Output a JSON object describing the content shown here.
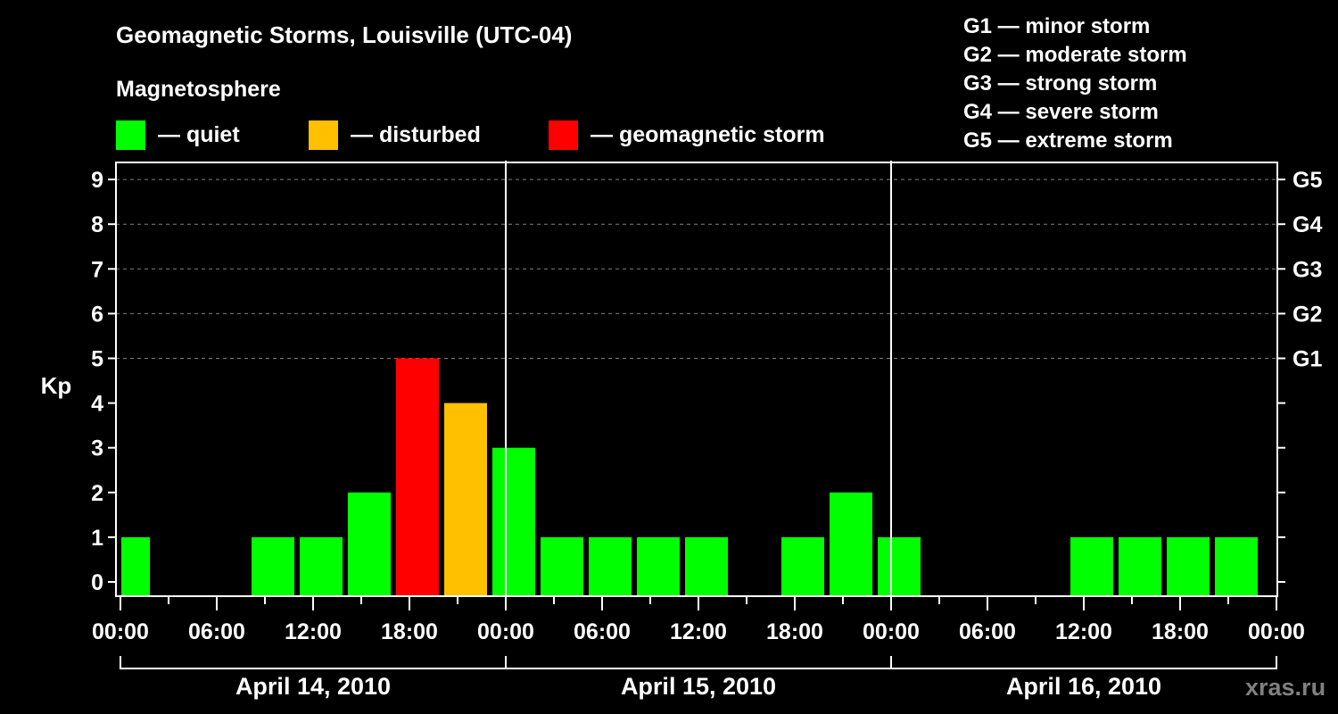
{
  "header": {
    "title": "Geomagnetic Storms, Louisville (UTC-04)",
    "subtitle": "Magnetosphere"
  },
  "legend": [
    {
      "label": "— quiet",
      "color": "#00ff00"
    },
    {
      "label": "— disturbed",
      "color": "#ffc000"
    },
    {
      "label": "— geomagnetic storm",
      "color": "#ff0000"
    }
  ],
  "storm_scale": [
    "G1 — minor storm",
    "G2 — moderate storm",
    "G3 — strong storm",
    "G4 — severe storm",
    "G5 — extreme storm"
  ],
  "axes": {
    "ylabel": "Kp",
    "yticks": [
      "0",
      "1",
      "2",
      "3",
      "4",
      "5",
      "6",
      "7",
      "8",
      "9"
    ],
    "right_ticks": {
      "5": "G1",
      "6": "G2",
      "7": "G3",
      "8": "G4",
      "9": "G5"
    },
    "xticks": [
      "00:00",
      "06:00",
      "12:00",
      "18:00",
      "00:00",
      "06:00",
      "12:00",
      "18:00",
      "00:00",
      "06:00",
      "12:00",
      "18:00",
      "00:00"
    ],
    "days": [
      "April 14, 2010",
      "April 15, 2010",
      "April 16, 2010"
    ]
  },
  "watermark": "xras.ru",
  "colors": {
    "quiet": "#00ff00",
    "disturbed": "#ffc000",
    "storm": "#ff0000",
    "grid": "#808080",
    "axis": "#ffffff"
  },
  "chart_data": {
    "type": "bar",
    "title": "Geomagnetic Storms, Louisville (UTC-04)",
    "xlabel": "",
    "ylabel": "Kp",
    "ylim": [
      0,
      9
    ],
    "grid": "dashed horizontal at Kp 5–9",
    "interval_hours": 3,
    "categories": [
      "Apr 13 23:00–Apr 14 02:00",
      "Apr 14 02:00–05:00",
      "Apr 14 05:00–08:00",
      "Apr 14 08:00–11:00",
      "Apr 14 11:00–14:00",
      "Apr 14 14:00–17:00",
      "Apr 14 17:00–20:00",
      "Apr 14 20:00–23:00",
      "Apr 14 23:00–Apr 15 02:00",
      "Apr 15 02:00–05:00",
      "Apr 15 05:00–08:00",
      "Apr 15 08:00–11:00",
      "Apr 15 11:00–14:00",
      "Apr 15 14:00–17:00",
      "Apr 15 17:00–20:00",
      "Apr 15 20:00–23:00",
      "Apr 15 23:00–Apr 16 02:00",
      "Apr 16 02:00–05:00",
      "Apr 16 05:00–08:00",
      "Apr 16 08:00–11:00",
      "Apr 16 11:00–14:00",
      "Apr 16 14:00–17:00",
      "Apr 16 17:00–20:00",
      "Apr 16 20:00–23:00"
    ],
    "start_hours": [
      -1,
      2,
      5,
      8,
      11,
      14,
      17,
      20,
      23,
      26,
      29,
      32,
      35,
      38,
      41,
      44,
      47,
      50,
      53,
      56,
      59,
      62,
      65,
      68
    ],
    "values": [
      1,
      0,
      0,
      1,
      1,
      2,
      5,
      4,
      3,
      1,
      1,
      1,
      1,
      0,
      1,
      2,
      1,
      0,
      0,
      0,
      1,
      1,
      1,
      1
    ],
    "status": [
      "quiet",
      "quiet",
      "quiet",
      "quiet",
      "quiet",
      "quiet",
      "storm",
      "disturbed",
      "quiet",
      "quiet",
      "quiet",
      "quiet",
      "quiet",
      "quiet",
      "quiet",
      "quiet",
      "quiet",
      "quiet",
      "quiet",
      "quiet",
      "quiet",
      "quiet",
      "quiet",
      "quiet"
    ],
    "legend": [
      "quiet",
      "disturbed",
      "geomagnetic storm"
    ],
    "secondary_axis": {
      "G1": 5,
      "G2": 6,
      "G3": 7,
      "G4": 8,
      "G5": 9
    }
  }
}
